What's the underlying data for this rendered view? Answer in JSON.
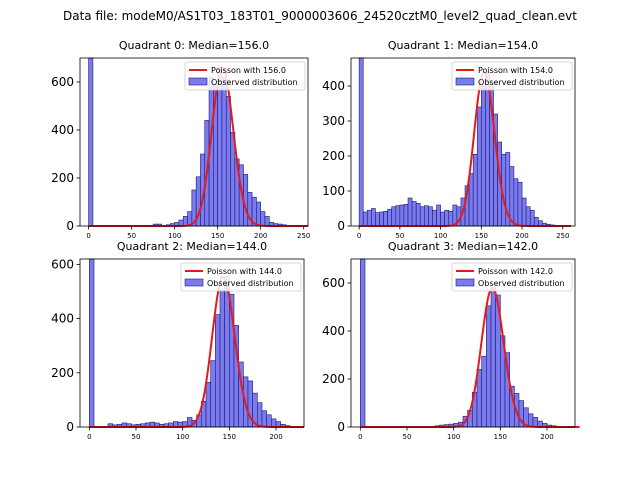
{
  "figure": {
    "suptitle": "Data file: modeM0/AS1T03_183T01_9000003606_24520cztM0_level2_quad_clean.evt"
  },
  "colors": {
    "bar_fill": "#7b7bee",
    "bar_edge": "#1a1a7a",
    "poisson_line": "#e41a1c",
    "axis": "#000000"
  },
  "chart_data": [
    {
      "type": "bar",
      "title": "Quadrant 0: Median=156.0",
      "median": 156.0,
      "xlim": [
        -10,
        255
      ],
      "ylim": [
        0,
        700
      ],
      "xticks": [
        0,
        50,
        100,
        150,
        200,
        250
      ],
      "yticks": [
        0,
        200,
        400,
        600
      ],
      "bin_width": 5,
      "bin_starts": [
        0,
        75,
        80,
        90,
        95,
        100,
        105,
        110,
        115,
        120,
        125,
        130,
        135,
        140,
        145,
        150,
        155,
        160,
        165,
        170,
        175,
        180,
        185,
        190,
        195,
        200,
        205,
        210,
        215,
        220,
        225,
        230,
        235
      ],
      "counts": [
        700,
        8,
        8,
        5,
        10,
        15,
        25,
        40,
        60,
        150,
        205,
        300,
        440,
        620,
        590,
        660,
        620,
        540,
        390,
        280,
        255,
        215,
        140,
        120,
        100,
        60,
        40,
        15,
        10,
        8,
        5,
        3,
        2
      ],
      "poisson_label": "Poisson with 156.0",
      "observed_label": "Observed distribution"
    },
    {
      "type": "bar",
      "title": "Quadrant 1: Median=154.0",
      "median": 154.0,
      "xlim": [
        -10,
        265
      ],
      "ylim": [
        0,
        480
      ],
      "xticks": [
        0,
        50,
        100,
        150,
        200,
        250
      ],
      "yticks": [
        0,
        100,
        200,
        300,
        400
      ],
      "bin_width": 5,
      "bin_starts": [
        0,
        5,
        10,
        15,
        20,
        25,
        30,
        35,
        40,
        45,
        50,
        55,
        60,
        65,
        70,
        75,
        80,
        85,
        90,
        95,
        100,
        105,
        110,
        115,
        120,
        125,
        130,
        135,
        140,
        145,
        150,
        155,
        160,
        165,
        170,
        175,
        180,
        185,
        190,
        195,
        200,
        205,
        210,
        215,
        220,
        225,
        230,
        235,
        240
      ],
      "counts": [
        480,
        40,
        45,
        50,
        38,
        40,
        42,
        48,
        55,
        58,
        60,
        62,
        80,
        70,
        65,
        55,
        58,
        55,
        45,
        60,
        40,
        45,
        42,
        60,
        55,
        80,
        115,
        150,
        205,
        340,
        400,
        440,
        410,
        320,
        240,
        205,
        210,
        170,
        135,
        125,
        80,
        55,
        45,
        25,
        15,
        8,
        5,
        3,
        2
      ],
      "poisson_label": "Poisson with 154.0",
      "observed_label": "Observed distribution"
    },
    {
      "type": "bar",
      "title": "Quadrant 2: Median=144.0",
      "median": 144.0,
      "xlim": [
        -10,
        230
      ],
      "ylim": [
        0,
        620
      ],
      "xticks": [
        0,
        50,
        100,
        150,
        200
      ],
      "yticks": [
        0,
        200,
        400,
        600
      ],
      "bin_width": 5,
      "bin_starts": [
        0,
        20,
        25,
        30,
        35,
        40,
        45,
        50,
        55,
        60,
        65,
        70,
        75,
        80,
        85,
        90,
        95,
        100,
        105,
        110,
        115,
        120,
        125,
        130,
        135,
        140,
        145,
        150,
        155,
        160,
        165,
        170,
        175,
        180,
        185,
        190,
        195,
        200,
        205,
        210
      ],
      "counts": [
        620,
        12,
        8,
        10,
        15,
        12,
        8,
        10,
        12,
        15,
        18,
        15,
        10,
        12,
        15,
        20,
        18,
        20,
        35,
        25,
        45,
        95,
        165,
        245,
        415,
        505,
        555,
        490,
        375,
        240,
        185,
        170,
        125,
        90,
        60,
        45,
        30,
        20,
        10,
        5
      ],
      "poisson_label": "Poisson with 144.0",
      "observed_label": "Observed distribution"
    },
    {
      "type": "bar",
      "title": "Quadrant 3: Median=142.0",
      "median": 142.0,
      "xlim": [
        -10,
        230
      ],
      "ylim": [
        0,
        700
      ],
      "xticks": [
        0,
        50,
        100,
        150,
        200
      ],
      "yticks": [
        0,
        200,
        400,
        600
      ],
      "bin_width": 5,
      "bin_starts": [
        0,
        80,
        85,
        90,
        95,
        100,
        105,
        110,
        115,
        120,
        125,
        130,
        135,
        140,
        145,
        150,
        155,
        160,
        165,
        170,
        175,
        180,
        185,
        190,
        195,
        200,
        205,
        210,
        215
      ],
      "counts": [
        700,
        5,
        8,
        10,
        12,
        15,
        20,
        45,
        70,
        145,
        240,
        295,
        505,
        580,
        550,
        380,
        310,
        170,
        140,
        110,
        80,
        55,
        40,
        25,
        15,
        8,
        5,
        3,
        2
      ],
      "poisson_label": "Poisson with 142.0",
      "observed_label": "Observed distribution"
    }
  ]
}
